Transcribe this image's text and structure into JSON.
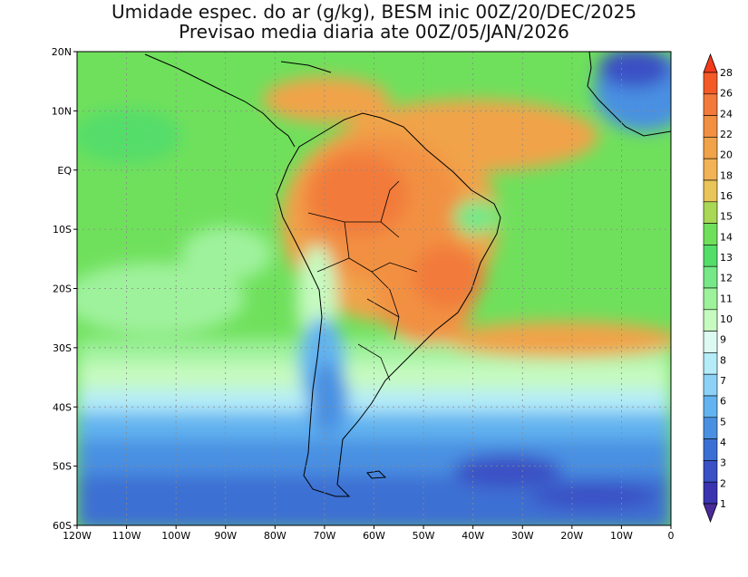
{
  "title": {
    "line1": "Umidade espec. do ar (g/kg), BESM inic 00Z/20/DEC/2025",
    "line2": "Previsao media diaria ate 00Z/05/JAN/2026"
  },
  "map": {
    "projection": "latlon",
    "lon_range": [
      -120,
      0
    ],
    "lat_range": [
      -60,
      20
    ],
    "grid": "dotted",
    "lat_ticks": [
      "20N",
      "10N",
      "EQ",
      "10S",
      "20S",
      "30S",
      "40S",
      "50S",
      "60S"
    ],
    "lon_ticks": [
      "120W",
      "110W",
      "100W",
      "90W",
      "80W",
      "70W",
      "60W",
      "50W",
      "40W",
      "30W",
      "20W",
      "10W",
      "0"
    ]
  },
  "colorbar": {
    "labels": [
      "28",
      "26",
      "24",
      "22",
      "20",
      "18",
      "16",
      "15",
      "14",
      "13",
      "12",
      "11",
      "10",
      "9",
      "8",
      "7",
      "6",
      "5",
      "4",
      "3",
      "2",
      "1"
    ],
    "colors": [
      "#f43a1b",
      "#f35a26",
      "#f27a3a",
      "#f29042",
      "#f1a34a",
      "#f2b356",
      "#e9c45a",
      "#a8d856",
      "#6fe05c",
      "#55dd6a",
      "#76e887",
      "#9ff29c",
      "#c6fac0",
      "#ddfaf2",
      "#b5ecf8",
      "#8cd2f6",
      "#62b3f0",
      "#4a90e2",
      "#3c6fd3",
      "#3a50c4",
      "#3a34b0",
      "#4a2a9a"
    ]
  }
}
